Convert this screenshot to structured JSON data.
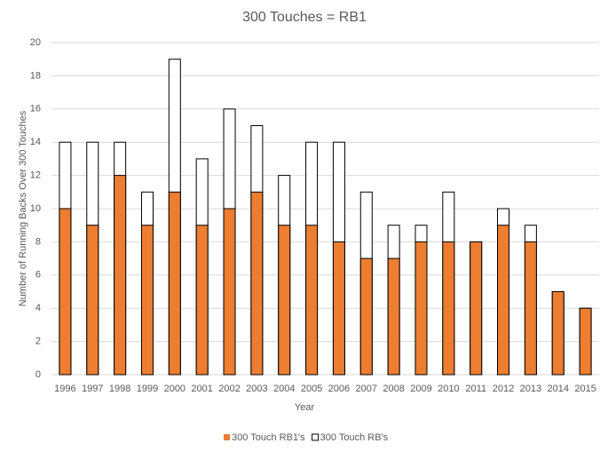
{
  "chart_data": {
    "type": "bar",
    "title": "300 Touches = RB1",
    "x_label": "Year",
    "y_label": "Number of Running  Backs Over 300 Touches",
    "categories": [
      "1996",
      "1997",
      "1998",
      "1999",
      "2000",
      "2001",
      "2002",
      "2003",
      "2004",
      "2005",
      "2006",
      "2007",
      "2008",
      "2009",
      "2010",
      "2011",
      "2012",
      "2013",
      "2014",
      "2015"
    ],
    "series": [
      {
        "name": "300 Touch RB1's",
        "color": "#ed7d31",
        "values": [
          10,
          9,
          12,
          9,
          11,
          9,
          10,
          11,
          9,
          9,
          8,
          7,
          7,
          8,
          8,
          8,
          9,
          8,
          5,
          4
        ]
      },
      {
        "name": "300 Touch RB's",
        "color": "#ffffff",
        "values": [
          14,
          14,
          14,
          11,
          19,
          13,
          16,
          15,
          12,
          14,
          14,
          11,
          9,
          9,
          11,
          8,
          10,
          9,
          5,
          4
        ]
      }
    ],
    "ylim": [
      0,
      20
    ],
    "yticks": [
      0,
      2,
      4,
      6,
      8,
      10,
      12,
      14,
      16,
      18,
      20
    ],
    "grid": true,
    "legend": "bottom"
  }
}
